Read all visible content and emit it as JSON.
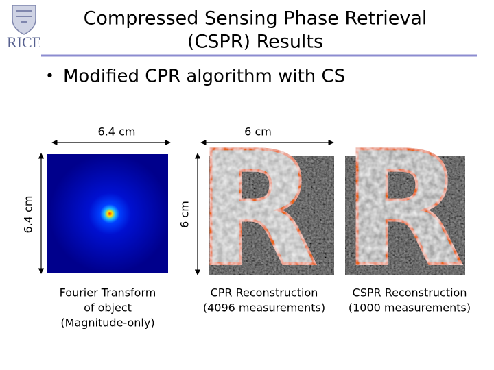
{
  "logo": "RICE",
  "title": [
    "Compressed Sensing Phase Retrieval",
    "(CSPR) Results"
  ],
  "bullet": "Modified CPR algorithm with CS",
  "dimensions": {
    "fourier_width": "6.4 cm",
    "fourier_height": "6.4 cm",
    "recon_width": "6 cm",
    "recon_height": "6 cm"
  },
  "reconstruction_letter": "R",
  "panels": [
    {
      "caption": [
        "Fourier Transform",
        "of object",
        "(Magnitude-only)"
      ]
    },
    {
      "caption": [
        "CPR Reconstruction",
        "(4096 measurements)"
      ]
    },
    {
      "caption": [
        "CSPR Reconstruction",
        "(1000 measurements)"
      ]
    }
  ]
}
